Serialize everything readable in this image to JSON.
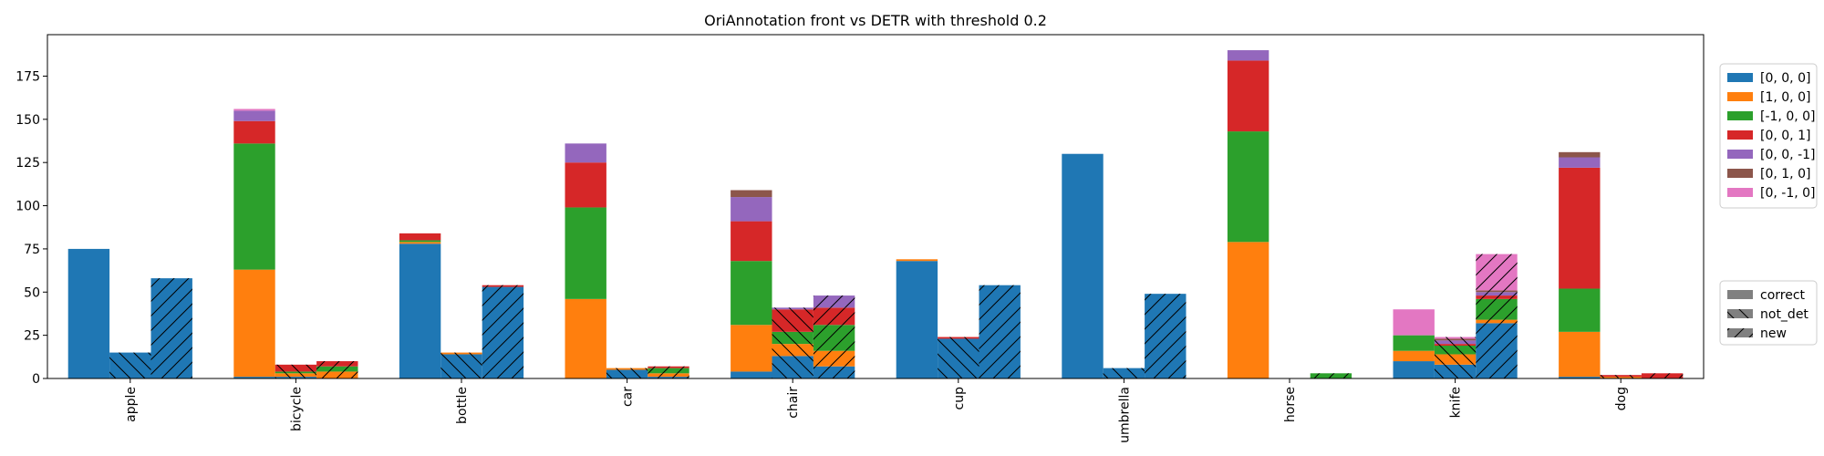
{
  "chart_data": {
    "type": "bar",
    "title": "OriAnnotation front vs DETR with threshold 0.2",
    "xlabel": "",
    "ylabel": "",
    "ylim": [
      0,
      199
    ],
    "yticks": [
      0,
      25,
      50,
      75,
      100,
      125,
      150,
      175
    ],
    "grid": false,
    "categories": [
      "apple",
      "bicycle",
      "bottle",
      "car",
      "chair",
      "cup",
      "umbrella",
      "horse",
      "knife",
      "dog"
    ],
    "groups": [
      "correct",
      "not_det",
      "new"
    ],
    "series": [
      {
        "name": "[0, 0, 0]",
        "color": "#1f77b4",
        "correct": [
          75,
          1,
          78,
          0,
          4,
          68,
          130,
          0,
          10,
          1
        ],
        "not_det": [
          15,
          1,
          14,
          5,
          13,
          23,
          6,
          0,
          8,
          0
        ],
        "new": [
          58,
          0,
          53,
          1,
          7,
          54,
          49,
          0,
          32,
          0
        ]
      },
      {
        "name": "[1, 0, 0]",
        "color": "#ff7f0e",
        "correct": [
          0,
          62,
          1,
          46,
          27,
          1,
          0,
          79,
          6,
          26
        ],
        "not_det": [
          0,
          2,
          1,
          1,
          7,
          0,
          0,
          0,
          6,
          1
        ],
        "new": [
          0,
          4,
          0,
          2,
          9,
          0,
          0,
          0,
          2,
          0
        ]
      },
      {
        "name": "[-1, 0, 0]",
        "color": "#2ca02c",
        "correct": [
          0,
          73,
          1,
          53,
          37,
          0,
          0,
          64,
          9,
          25
        ],
        "not_det": [
          0,
          1,
          0,
          0,
          7,
          0,
          0,
          0,
          5,
          0
        ],
        "new": [
          0,
          3,
          0,
          3,
          15,
          0,
          0,
          3,
          12,
          0
        ]
      },
      {
        "name": "[0, 0, 1]",
        "color": "#d62728",
        "correct": [
          0,
          13,
          4,
          26,
          23,
          0,
          0,
          41,
          0,
          70
        ],
        "not_det": [
          0,
          4,
          0,
          0,
          13,
          1,
          0,
          0,
          1,
          1
        ],
        "new": [
          0,
          3,
          1,
          1,
          10,
          0,
          0,
          0,
          2,
          3
        ]
      },
      {
        "name": "[0, 0, -1]",
        "color": "#9467bd",
        "correct": [
          0,
          6,
          0,
          11,
          14,
          0,
          0,
          6,
          0,
          6
        ],
        "not_det": [
          0,
          0,
          0,
          0,
          1,
          0,
          0,
          0,
          2,
          0
        ],
        "new": [
          0,
          0,
          0,
          0,
          7,
          0,
          0,
          0,
          2,
          0
        ]
      },
      {
        "name": "[0, 1, 0]",
        "color": "#8c564b",
        "correct": [
          0,
          0,
          0,
          0,
          4,
          0,
          0,
          0,
          0,
          3
        ],
        "not_det": [
          0,
          0,
          0,
          0,
          0,
          0,
          0,
          0,
          1,
          0
        ],
        "new": [
          0,
          0,
          0,
          0,
          0,
          0,
          0,
          0,
          1,
          0
        ]
      },
      {
        "name": "[0, -1, 0]",
        "color": "#e377c2",
        "correct": [
          0,
          1,
          0,
          0,
          0,
          0,
          0,
          0,
          15,
          0
        ],
        "not_det": [
          0,
          0,
          0,
          0,
          0,
          0,
          0,
          0,
          1,
          0
        ],
        "new": [
          0,
          0,
          0,
          0,
          0,
          0,
          0,
          0,
          21,
          0
        ]
      }
    ],
    "legend_groups": [
      {
        "name": "correct",
        "hatch": "none"
      },
      {
        "name": "not_det",
        "hatch": "\\"
      },
      {
        "name": "new",
        "hatch": "/"
      }
    ],
    "legend_placement": "right, outside plot"
  }
}
